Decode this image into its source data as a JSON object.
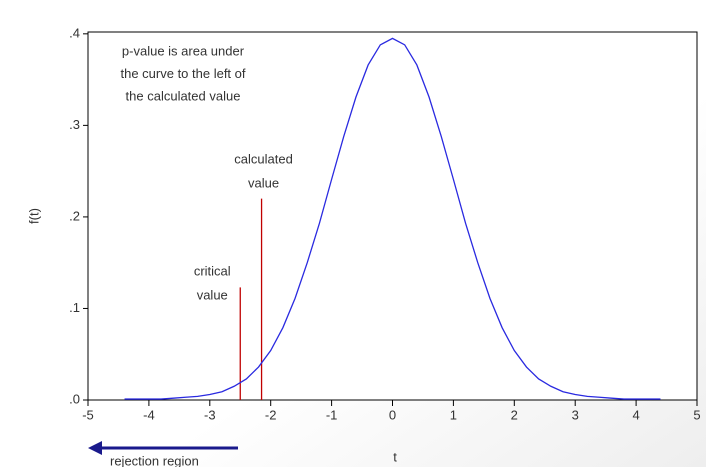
{
  "chart_data": {
    "type": "line",
    "xlabel": "t",
    "ylabel": "f(t)",
    "annotation_lines": [
      "p-value is area under",
      "the curve to the left of",
      "the calculated value"
    ],
    "region_label": "rejection region",
    "x": [
      -4.4,
      -4.2,
      -4.0,
      -3.8,
      -3.6,
      -3.4,
      -3.2,
      -3.0,
      -2.8,
      -2.6,
      -2.4,
      -2.2,
      -2.0,
      -1.8,
      -1.6,
      -1.4,
      -1.2,
      -1.0,
      -0.8,
      -0.6,
      -0.4,
      -0.2,
      0,
      0.2,
      0.4,
      0.6,
      0.8,
      1.0,
      1.2,
      1.4,
      1.6,
      1.8,
      2.0,
      2.2,
      2.4,
      2.6,
      2.8,
      3.0,
      3.2,
      3.4,
      3.6,
      3.8,
      4.0,
      4.2,
      4.4
    ],
    "values": [
      0.001,
      0.001,
      0.001,
      0.001,
      0.002,
      0.003,
      0.004,
      0.006,
      0.009,
      0.015,
      0.023,
      0.036,
      0.054,
      0.079,
      0.111,
      0.15,
      0.193,
      0.241,
      0.288,
      0.331,
      0.366,
      0.388,
      0.395,
      0.388,
      0.366,
      0.331,
      0.288,
      0.241,
      0.193,
      0.15,
      0.111,
      0.079,
      0.054,
      0.036,
      0.023,
      0.015,
      0.009,
      0.006,
      0.004,
      0.003,
      0.002,
      0.001,
      0.001,
      0.001,
      0.001
    ],
    "color": "#2a2ae0",
    "reference_lines": [
      {
        "x": -2.5,
        "value": 0.123,
        "label_lines": [
          "critical",
          "value"
        ],
        "color": "#c00000"
      },
      {
        "x": -2.15,
        "value": 0.22,
        "label_lines": [
          "calculated",
          "value"
        ],
        "color": "#c00000"
      }
    ],
    "xlim": [
      -5,
      5
    ],
    "ylim": [
      0,
      0.402
    ],
    "xticks": [
      -5,
      -4,
      -3,
      -2,
      -1,
      0,
      1,
      2,
      3,
      4,
      5
    ],
    "yticks": [
      {
        "value": 0,
        "label": ".0"
      },
      {
        "value": 0.1,
        "label": ".1"
      },
      {
        "value": 0.2,
        "label": ".2"
      },
      {
        "value": 0.3,
        "label": ".3"
      },
      {
        "value": 0.4,
        "label": ".4"
      }
    ]
  }
}
